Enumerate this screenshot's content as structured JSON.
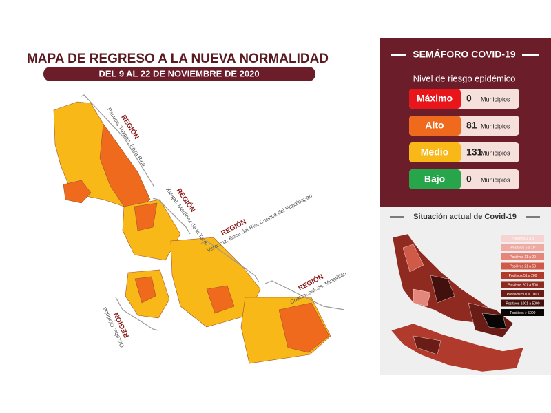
{
  "header": {
    "title": "MAPA DE REGRESO A LA NUEVA NORMALIDAD",
    "subtitle": "DEL 9 AL 22 DE NOVIEMBRE DE 2020"
  },
  "regions": [
    {
      "label": "REGIÓN",
      "cities": "Pánuco, Tuxpan, Poza Rica"
    },
    {
      "label": "REGIÓN",
      "cities": "Xalapa, Martínez de la Torre"
    },
    {
      "label": "REGIÓN",
      "cities": "Veracruz, Boca del Río, Cuenca del Papaloapan"
    },
    {
      "label": "REGIÓN",
      "cities": "Coatzacoalcos, Minatitlán"
    },
    {
      "label": "REGIÓN",
      "cities": "Orizaba, Córdoba"
    }
  ],
  "semaforo": {
    "title": "SEMÁFORO COVID-19",
    "subtitle": "Nivel de riesgo epidémico",
    "levels": [
      {
        "name": "Máximo",
        "count": 0,
        "unit": "Municipios",
        "color": "#e8151b"
      },
      {
        "name": "Alto",
        "count": 81,
        "unit": "Municipios",
        "color": "#f06a1d"
      },
      {
        "name": "Medio",
        "count": 131,
        "unit": "Municipios",
        "color": "#f7b818"
      },
      {
        "name": "Bajo",
        "count": 0,
        "unit": "Municipios",
        "color": "#26a54a"
      }
    ]
  },
  "situacion": {
    "title": "Situación actual de Covid-19",
    "legend": [
      {
        "label": "Positivos 1 a 5",
        "color": "#f6d3d0"
      },
      {
        "label": "Positivos 6 a 10",
        "color": "#eeaaa3"
      },
      {
        "label": "Positivos 11 a 20",
        "color": "#e5867b"
      },
      {
        "label": "Positivos 21 a 50",
        "color": "#cf5a48"
      },
      {
        "label": "Positivos 51 a 200",
        "color": "#b03a2c"
      },
      {
        "label": "Positivos 201 a 500",
        "color": "#8e2a20"
      },
      {
        "label": "Positivos 501 a 1000",
        "color": "#6a1d16"
      },
      {
        "label": "Positivos 1001 a 5000",
        "color": "#43110d"
      },
      {
        "label": "Positivos > 5000",
        "color": "#0a0505"
      }
    ]
  }
}
